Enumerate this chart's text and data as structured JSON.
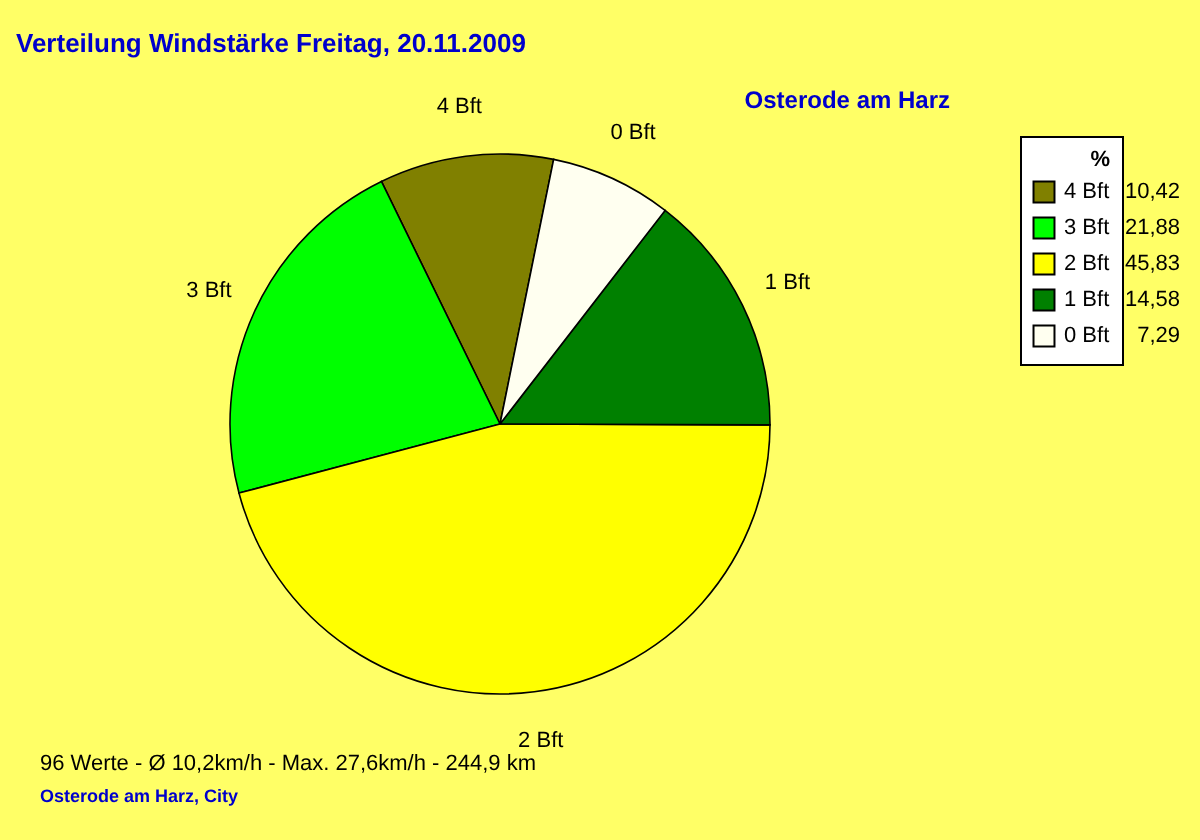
{
  "chart_data": {
    "type": "pie",
    "title": "Verteilung Windstärke  Freitag, 20.11.2009",
    "subtitle": "Osterode am Harz",
    "categories": [
      "4 Bft",
      "3 Bft",
      "2 Bft",
      "1 Bft",
      "0 Bft"
    ],
    "values": [
      10.42,
      21.88,
      45.83,
      14.58,
      7.29
    ],
    "value_labels": [
      "10,42",
      "21,88",
      "45,83",
      "14,58",
      "7,29"
    ],
    "colors": [
      "#808000",
      "#00ff00",
      "#ffff00",
      "#008000",
      "#fffff0"
    ],
    "legend_title": "%",
    "legend": "top right",
    "annotations": [
      "96 Werte   -   Ø 10,2km/h  -  Max. 27,6km/h   -   244,9 km",
      "Osterode am Harz, City"
    ]
  }
}
